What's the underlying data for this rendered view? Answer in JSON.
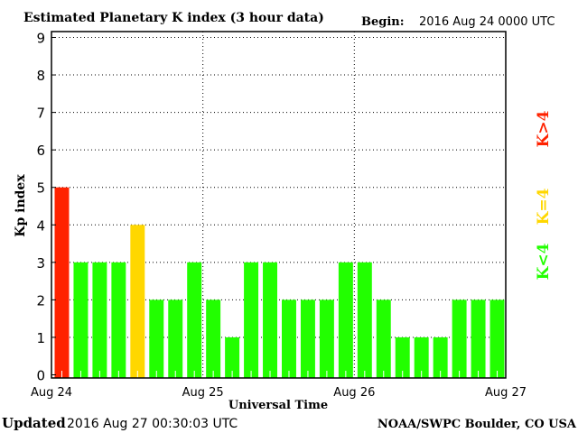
{
  "chart_data": {
    "type": "bar",
    "title": "Estimated Planetary K index (3 hour data)",
    "begin_label": "Begin:",
    "begin_value": "2016 Aug 24 0000 UTC",
    "xlabel": "Universal Time",
    "ylabel": "Kp index",
    "ylim": [
      0,
      9
    ],
    "yticks": [
      "0",
      "1",
      "2",
      "3",
      "4",
      "5",
      "6",
      "7",
      "8",
      "9"
    ],
    "xticks": [
      "Aug 24",
      "Aug 25",
      "Aug 26",
      "Aug 27"
    ],
    "grid": true,
    "values": [
      5,
      3,
      3,
      3,
      4,
      2,
      2,
      3,
      2,
      1,
      3,
      3,
      2,
      2,
      2,
      3,
      3,
      2,
      1,
      1,
      1,
      2,
      2,
      2
    ],
    "colors": {
      "low": "#22ff00",
      "equal": "#ffd700",
      "high": "#ff2200"
    },
    "legend": [
      {
        "label": "K>4",
        "color": "#ff2200"
      },
      {
        "label": "K=4",
        "color": "#ffd700"
      },
      {
        "label": "K<4",
        "color": "#22ff00"
      }
    ],
    "legend_position": "right"
  },
  "footer": {
    "updated_label": "Updated",
    "updated_value": "2016 Aug 27 00:30:03 UTC",
    "source": "NOAA/SWPC Boulder, CO USA"
  }
}
